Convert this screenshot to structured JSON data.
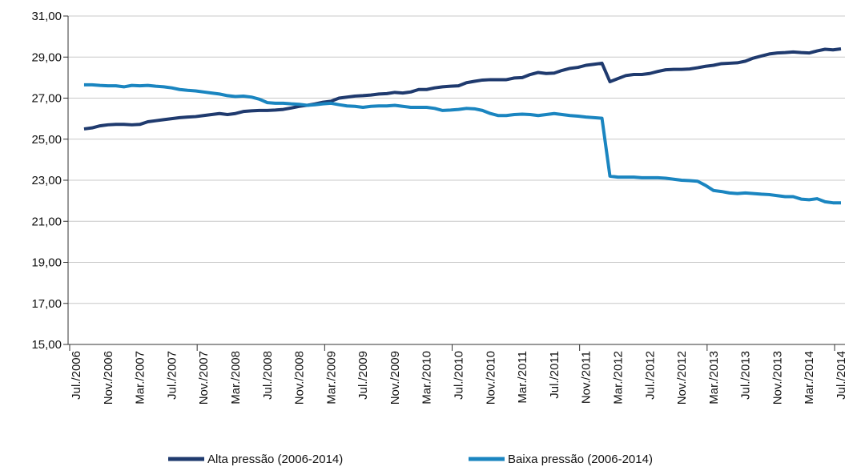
{
  "chart_data": {
    "type": "line",
    "categories": [
      "Jul./2006",
      null,
      null,
      null,
      "Nov./2006",
      null,
      null,
      null,
      "Mar./2007",
      null,
      null,
      null,
      "Jul./2007",
      null,
      null,
      null,
      "Nov./2007",
      null,
      null,
      null,
      "Mar./2008",
      null,
      null,
      null,
      "Jul./2008",
      null,
      null,
      null,
      "Nov./2008",
      null,
      null,
      null,
      "Mar./2009",
      null,
      null,
      null,
      "Jul./2009",
      null,
      null,
      null,
      "Nov./2009",
      null,
      null,
      null,
      "Mar./2010",
      null,
      null,
      null,
      "Jul./2010",
      null,
      null,
      null,
      "Nov./2010",
      null,
      null,
      null,
      "Mar./2011",
      null,
      null,
      null,
      "Jul./2011",
      null,
      null,
      null,
      "Nov./2011",
      null,
      null,
      null,
      "Mar./2012",
      null,
      null,
      null,
      "Jul./2012",
      null,
      null,
      null,
      "Nov./2012",
      null,
      null,
      null,
      "Mar./2013",
      null,
      null,
      null,
      "Jul./2013",
      null,
      null,
      null,
      "Nov./2013",
      null,
      null,
      null,
      "Mar./2014",
      null,
      null,
      null,
      "Jul./2014"
    ],
    "series": [
      {
        "name": "Alta pressão (2006-2014)",
        "color": "#1f3a6e",
        "values": [
          null,
          25.5,
          25.55,
          25.65,
          25.7,
          25.72,
          25.72,
          25.7,
          25.72,
          25.85,
          25.9,
          25.95,
          26.0,
          26.05,
          26.08,
          26.1,
          26.15,
          26.2,
          26.25,
          26.2,
          26.25,
          26.35,
          26.38,
          26.4,
          26.4,
          26.42,
          26.45,
          26.52,
          26.6,
          26.65,
          26.72,
          26.8,
          26.85,
          27.0,
          27.05,
          27.1,
          27.12,
          27.15,
          27.2,
          27.22,
          27.28,
          27.25,
          27.3,
          27.42,
          27.42,
          27.5,
          27.55,
          27.58,
          27.6,
          27.75,
          27.82,
          27.88,
          27.9,
          27.9,
          27.9,
          27.98,
          28.0,
          28.15,
          28.25,
          28.2,
          28.22,
          28.35,
          28.45,
          28.5,
          28.6,
          28.65,
          28.7,
          27.8,
          27.95,
          28.1,
          28.15,
          28.15,
          28.2,
          28.3,
          28.38,
          28.4,
          28.4,
          28.42,
          28.48,
          28.55,
          28.6,
          28.68,
          28.7,
          28.72,
          28.8,
          28.95,
          29.05,
          29.15,
          29.2,
          29.22,
          29.25,
          29.22,
          29.2,
          29.3,
          29.38,
          29.35,
          29.4
        ]
      },
      {
        "name": "Baixa pressão (2006-2014)",
        "color": "#1a85c0",
        "values": [
          null,
          27.65,
          27.65,
          27.62,
          27.6,
          27.6,
          27.55,
          27.62,
          27.6,
          27.62,
          27.58,
          27.55,
          27.5,
          27.42,
          27.38,
          27.35,
          27.3,
          27.25,
          27.2,
          27.12,
          27.08,
          27.1,
          27.05,
          26.95,
          26.78,
          26.75,
          26.75,
          26.72,
          26.7,
          26.65,
          26.68,
          26.72,
          26.75,
          26.68,
          26.62,
          26.6,
          26.55,
          26.6,
          26.62,
          26.62,
          26.65,
          26.6,
          26.55,
          26.55,
          26.55,
          26.5,
          26.4,
          26.42,
          26.45,
          26.5,
          26.48,
          26.4,
          26.25,
          26.15,
          26.15,
          26.2,
          26.22,
          26.2,
          26.15,
          26.2,
          26.25,
          26.2,
          26.15,
          26.12,
          26.08,
          26.05,
          26.02,
          23.2,
          23.15,
          23.15,
          23.15,
          23.12,
          23.12,
          23.12,
          23.1,
          23.05,
          23.0,
          22.98,
          22.95,
          22.75,
          22.5,
          22.45,
          22.38,
          22.35,
          22.38,
          22.35,
          22.32,
          22.3,
          22.25,
          22.2,
          22.2,
          22.08,
          22.05,
          22.1,
          21.95,
          21.9,
          21.9
        ]
      }
    ],
    "ylim": [
      15,
      31
    ],
    "yticks": [
      {
        "value": 15,
        "label": "15,00"
      },
      {
        "value": 17,
        "label": "17,00"
      },
      {
        "value": 19,
        "label": "19,00"
      },
      {
        "value": 21,
        "label": "21,00"
      },
      {
        "value": 23,
        "label": "23,00"
      },
      {
        "value": 25,
        "label": "25,00"
      },
      {
        "value": 27,
        "label": "27,00"
      },
      {
        "value": 29,
        "label": "29,00"
      },
      {
        "value": 31,
        "label": "31,00"
      }
    ],
    "grid": true
  }
}
